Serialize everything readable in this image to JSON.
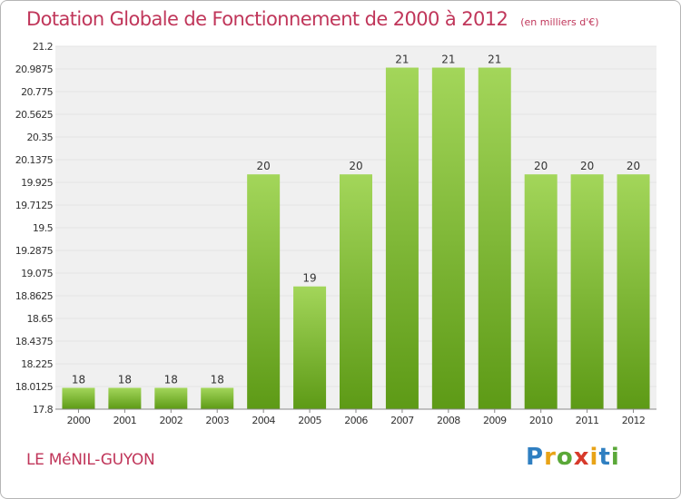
{
  "header": {
    "title": "Dotation Globale de Fonctionnement de 2000 à 2012",
    "unit": "(en milliers d'€)"
  },
  "footer": {
    "commune": "LE MéNIL-GUYON",
    "logo_letters": [
      "P",
      "r",
      "o",
      "x",
      "i",
      "t",
      "i"
    ],
    "logo_colors": [
      "#2f7fc1",
      "#e8a317",
      "#5aa838",
      "#d73a2b",
      "#e8a317",
      "#2f7fc1",
      "#5aa838"
    ]
  },
  "chart_data": {
    "type": "bar",
    "categories": [
      "2000",
      "2001",
      "2002",
      "2003",
      "2004",
      "2005",
      "2006",
      "2007",
      "2008",
      "2009",
      "2010",
      "2011",
      "2012"
    ],
    "values": [
      18,
      18,
      18,
      18,
      20,
      19,
      20,
      21,
      21,
      21,
      20,
      20,
      20
    ],
    "plotted_values": [
      18.0,
      18.0,
      18.0,
      18.0,
      20.0,
      18.95,
      20.0,
      21.0,
      21.0,
      21.0,
      20.0,
      20.0,
      20.0
    ],
    "data_labels": [
      "18",
      "18",
      "18",
      "18",
      "20",
      "19",
      "20",
      "21",
      "21",
      "21",
      "20",
      "20",
      "20"
    ],
    "ylim": [
      17.8,
      21.2
    ],
    "yticks": [
      "17.8",
      "18.0125",
      "18.225",
      "18.4375",
      "18.65",
      "18.8625",
      "19.075",
      "19.2875",
      "19.5",
      "19.7125",
      "19.925",
      "20.1375",
      "20.35",
      "20.5625",
      "20.775",
      "20.9875",
      "21.2"
    ],
    "grid": true,
    "colors": {
      "bar_light": "#a3d65a",
      "bar_dark": "#5d9a16",
      "grid": "#e4e4e4",
      "plot_bg": "#f0f0f0"
    }
  }
}
